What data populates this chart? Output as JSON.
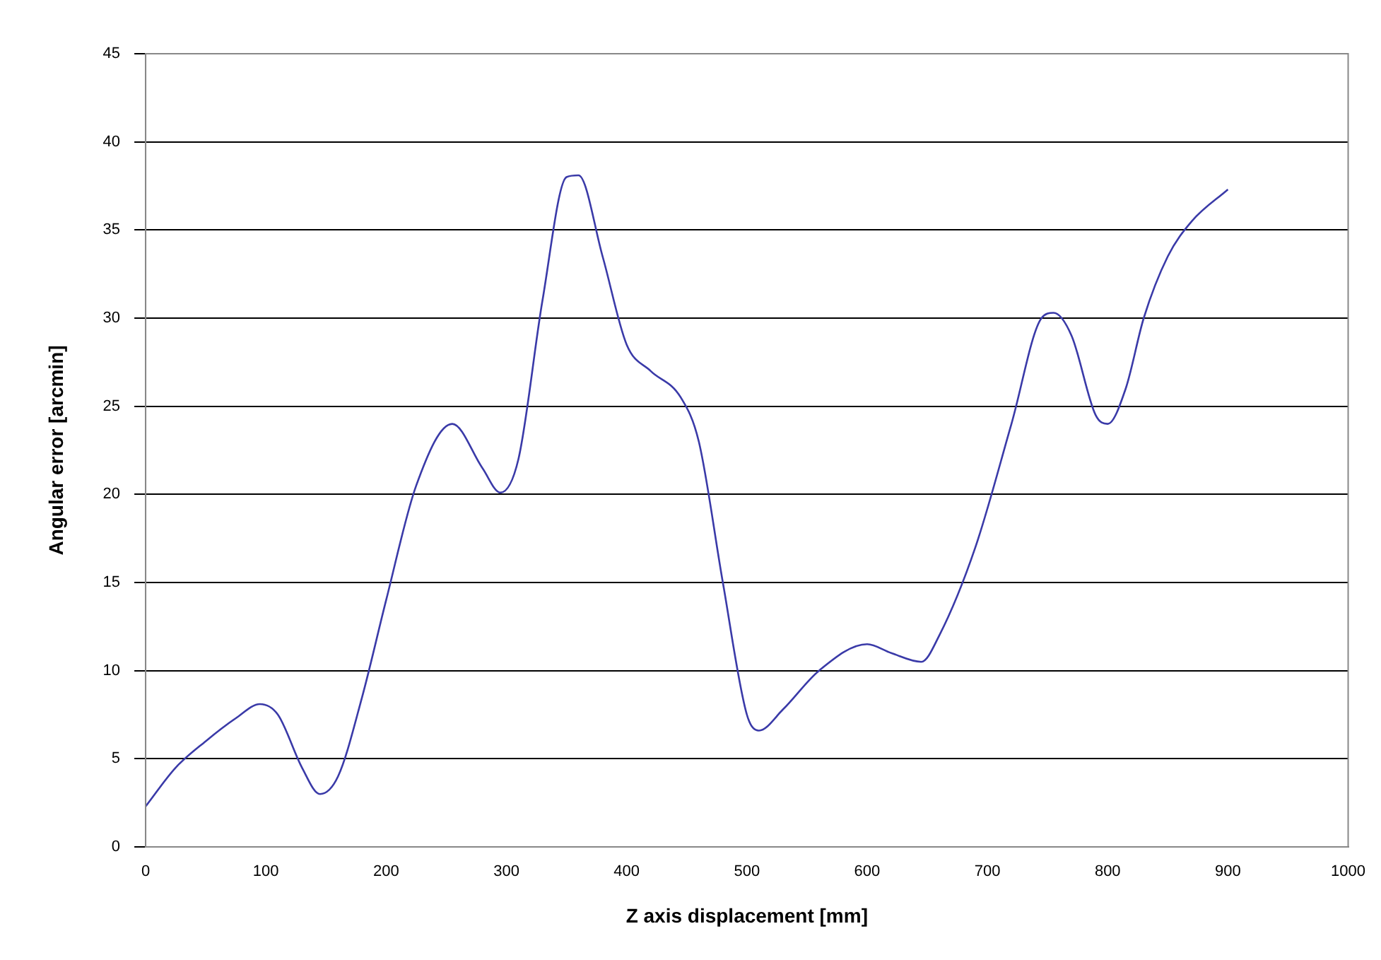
{
  "chart_data": {
    "type": "line",
    "xlabel": "Z axis displacement [mm]",
    "ylabel": "Angular error [arcmin]",
    "xlim": [
      0,
      1000
    ],
    "xticks": [
      0,
      100,
      200,
      300,
      400,
      500,
      600,
      700,
      800,
      900,
      1000
    ],
    "ylim": [
      0,
      45
    ],
    "yticks": [
      0,
      5,
      10,
      15,
      20,
      25,
      30,
      35,
      40,
      45
    ],
    "grid": "y",
    "legend": false,
    "marker": "none",
    "line_style": "solid",
    "series": [
      {
        "color": "#3a3aa8",
        "x": [
          0,
          25,
          50,
          75,
          95,
          110,
          130,
          145,
          160,
          180,
          200,
          225,
          255,
          280,
          295,
          310,
          330,
          350,
          360,
          380,
          400,
          420,
          445,
          460,
          480,
          500,
          510,
          530,
          560,
          600,
          620,
          645,
          660,
          690,
          720,
          745,
          755,
          770,
          790,
          800,
          815,
          830,
          850,
          870,
          900
        ],
        "values": [
          2.3,
          4.5,
          6,
          7.3,
          8.1,
          7.5,
          4.5,
          3,
          4,
          8.5,
          14,
          20.5,
          24,
          21.5,
          20.1,
          22,
          31,
          38,
          38.1,
          33.5,
          28.5,
          27,
          25.5,
          23,
          15,
          7.5,
          6.6,
          7.8,
          10,
          11.5,
          11,
          10.5,
          12,
          17,
          24,
          30,
          30.3,
          29,
          24.5,
          24,
          26,
          30,
          33.5,
          35.5,
          37.3
        ]
      }
    ]
  }
}
